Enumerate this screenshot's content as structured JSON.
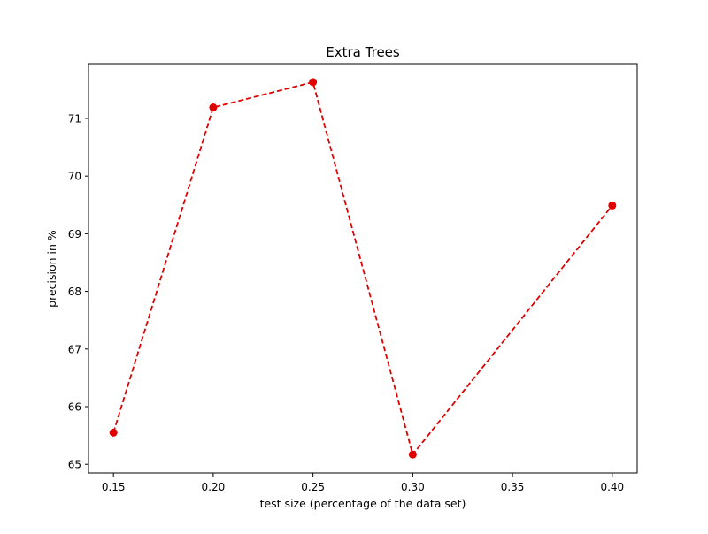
{
  "chart_data": {
    "type": "line",
    "title": "Extra Trees",
    "xlabel": "test size (percentage of the data set)",
    "ylabel": "precision in %",
    "x": [
      0.15,
      0.2,
      0.25,
      0.3,
      0.4
    ],
    "series": [
      {
        "values": [
          65.55,
          71.19,
          71.63,
          65.17,
          69.49
        ],
        "color": "#e00000",
        "line_style": "dashed",
        "marker": "circle"
      }
    ],
    "xlim": [
      0.1375,
      0.4125
    ],
    "ylim": [
      64.85,
      71.95
    ],
    "x_ticks": [
      0.15,
      0.2,
      0.25,
      0.3,
      0.35,
      0.4
    ],
    "x_tick_labels": [
      "0.15",
      "0.20",
      "0.25",
      "0.30",
      "0.35",
      "0.40"
    ],
    "y_ticks": [
      65,
      66,
      67,
      68,
      69,
      70,
      71
    ],
    "y_tick_labels": [
      "65",
      "66",
      "67",
      "68",
      "69",
      "70",
      "71"
    ],
    "grid": false,
    "legend": false
  }
}
